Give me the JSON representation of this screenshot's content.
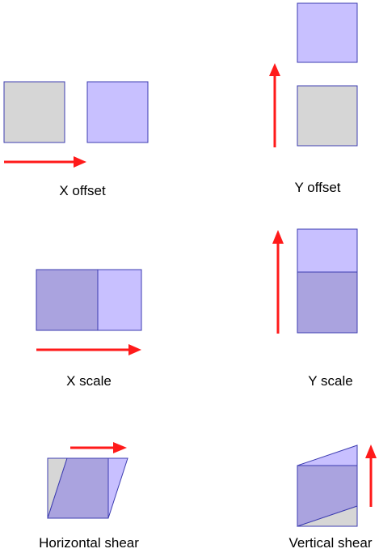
{
  "colors": {
    "original_fill": "#d6d6d6",
    "transformed_fill": "#c8c0ff",
    "overlap_fill": "#aaa3df",
    "outline": "#3d3db0",
    "arrow": "#ff1a1a"
  },
  "panels": [
    {
      "id": "x-offset",
      "label": "X offset"
    },
    {
      "id": "y-offset",
      "label": "Y offset"
    },
    {
      "id": "x-scale",
      "label": "X scale"
    },
    {
      "id": "y-scale",
      "label": "Y scale"
    },
    {
      "id": "horizontal-shear",
      "label": "Horizontal shear"
    },
    {
      "id": "vertical-shear",
      "label": "Vertical shear"
    }
  ]
}
